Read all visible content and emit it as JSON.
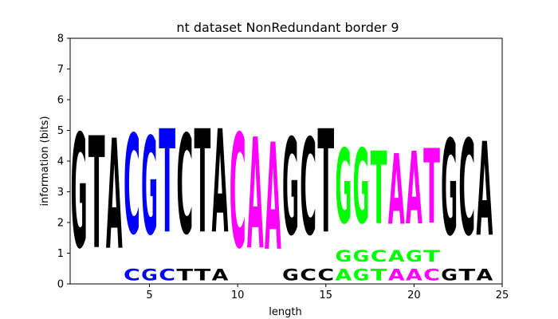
{
  "chart_data": {
    "type": "sequence-logo",
    "title": "nt dataset NonRedundant border 9",
    "xlabel": "length",
    "ylabel": "information (bits)",
    "xlim": [
      0.5,
      25
    ],
    "ylim": [
      0,
      8
    ],
    "xticks": [
      5,
      10,
      15,
      20,
      25
    ],
    "yticks": [
      0,
      1,
      2,
      3,
      4,
      5,
      6,
      7,
      8
    ],
    "grid": false,
    "colors": {
      "A": "#000000",
      "C": "#0000ff",
      "G": "#000000",
      "T": "#000000",
      "magenta": "#ff00ff",
      "green": "#00ff00",
      "blue": "#0000ff"
    },
    "positions": [
      {
        "pos": 1,
        "letters": [
          {
            "ch": "G",
            "bits": 5.95,
            "color": "#000000"
          }
        ]
      },
      {
        "pos": 2,
        "letters": [
          {
            "ch": "T",
            "bits": 5.85,
            "color": "#000000"
          }
        ]
      },
      {
        "pos": 3,
        "letters": [
          {
            "ch": "A",
            "bits": 5.75,
            "color": "#000000"
          }
        ]
      },
      {
        "pos": 4,
        "letters": [
          {
            "ch": "C",
            "bits": 0.6,
            "color": "#0000ff"
          },
          {
            "ch": "C",
            "bits": 5.2,
            "color": "#0000ff"
          }
        ]
      },
      {
        "pos": 5,
        "letters": [
          {
            "ch": "G",
            "bits": 0.6,
            "color": "#0000ff"
          },
          {
            "ch": "G",
            "bits": 5.1,
            "color": "#0000ff"
          }
        ]
      },
      {
        "pos": 6,
        "letters": [
          {
            "ch": "C",
            "bits": 0.6,
            "color": "#0000ff"
          },
          {
            "ch": "T",
            "bits": 5.4,
            "color": "#0000ff"
          }
        ]
      },
      {
        "pos": 7,
        "letters": [
          {
            "ch": "T",
            "bits": 0.6,
            "color": "#000000"
          },
          {
            "ch": "C",
            "bits": 5.2,
            "color": "#000000"
          }
        ]
      },
      {
        "pos": 8,
        "letters": [
          {
            "ch": "T",
            "bits": 0.6,
            "color": "#000000"
          },
          {
            "ch": "T",
            "bits": 5.4,
            "color": "#000000"
          }
        ]
      },
      {
        "pos": 9,
        "letters": [
          {
            "ch": "A",
            "bits": 0.6,
            "color": "#000000"
          },
          {
            "ch": "A",
            "bits": 5.4,
            "color": "#000000"
          }
        ]
      },
      {
        "pos": 10,
        "letters": [
          {
            "ch": "C",
            "bits": 5.95,
            "color": "#ff00ff"
          }
        ]
      },
      {
        "pos": 11,
        "letters": [
          {
            "ch": "A",
            "bits": 5.8,
            "color": "#ff00ff"
          }
        ]
      },
      {
        "pos": 12,
        "letters": [
          {
            "ch": "A",
            "bits": 5.6,
            "color": "#ff00ff"
          }
        ]
      },
      {
        "pos": 13,
        "letters": [
          {
            "ch": "G",
            "bits": 0.6,
            "color": "#000000"
          },
          {
            "ch": "G",
            "bits": 5.05,
            "color": "#000000"
          }
        ]
      },
      {
        "pos": 14,
        "letters": [
          {
            "ch": "C",
            "bits": 0.6,
            "color": "#000000"
          },
          {
            "ch": "C",
            "bits": 5.05,
            "color": "#000000"
          }
        ]
      },
      {
        "pos": 15,
        "letters": [
          {
            "ch": "C",
            "bits": 0.6,
            "color": "#000000"
          },
          {
            "ch": "T",
            "bits": 5.4,
            "color": "#000000"
          }
        ]
      },
      {
        "pos": 16,
        "letters": [
          {
            "ch": "A",
            "bits": 0.6,
            "color": "#00ff00"
          },
          {
            "ch": "G",
            "bits": 0.6,
            "color": "#00ff00"
          },
          {
            "ch": "G",
            "bits": 3.9,
            "color": "#00ff00"
          }
        ]
      },
      {
        "pos": 17,
        "letters": [
          {
            "ch": "G",
            "bits": 0.6,
            "color": "#00ff00"
          },
          {
            "ch": "G",
            "bits": 0.6,
            "color": "#00ff00"
          },
          {
            "ch": "G",
            "bits": 3.9,
            "color": "#00ff00"
          }
        ]
      },
      {
        "pos": 18,
        "letters": [
          {
            "ch": "T",
            "bits": 0.6,
            "color": "#00ff00"
          },
          {
            "ch": "C",
            "bits": 0.6,
            "color": "#00ff00"
          },
          {
            "ch": "T",
            "bits": 3.8,
            "color": "#00ff00"
          }
        ]
      },
      {
        "pos": 19,
        "letters": [
          {
            "ch": "A",
            "bits": 0.6,
            "color": "#ff00ff"
          },
          {
            "ch": "A",
            "bits": 0.6,
            "color": "#00ff00"
          },
          {
            "ch": "A",
            "bits": 3.7,
            "color": "#ff00ff"
          }
        ]
      },
      {
        "pos": 20,
        "letters": [
          {
            "ch": "A",
            "bits": 0.6,
            "color": "#ff00ff"
          },
          {
            "ch": "G",
            "bits": 0.6,
            "color": "#00ff00"
          },
          {
            "ch": "A",
            "bits": 3.8,
            "color": "#ff00ff"
          }
        ]
      },
      {
        "pos": 21,
        "letters": [
          {
            "ch": "C",
            "bits": 0.6,
            "color": "#ff00ff"
          },
          {
            "ch": "T",
            "bits": 0.6,
            "color": "#00ff00"
          },
          {
            "ch": "T",
            "bits": 3.9,
            "color": "#ff00ff"
          }
        ]
      },
      {
        "pos": 22,
        "letters": [
          {
            "ch": "G",
            "bits": 0.6,
            "color": "#000000"
          },
          {
            "ch": "G",
            "bits": 5.0,
            "color": "#000000"
          }
        ]
      },
      {
        "pos": 23,
        "letters": [
          {
            "ch": "T",
            "bits": 0.6,
            "color": "#000000"
          },
          {
            "ch": "C",
            "bits": 5.0,
            "color": "#000000"
          }
        ]
      },
      {
        "pos": 24,
        "letters": [
          {
            "ch": "A",
            "bits": 0.6,
            "color": "#000000"
          },
          {
            "ch": "A",
            "bits": 4.9,
            "color": "#000000"
          }
        ]
      }
    ]
  }
}
